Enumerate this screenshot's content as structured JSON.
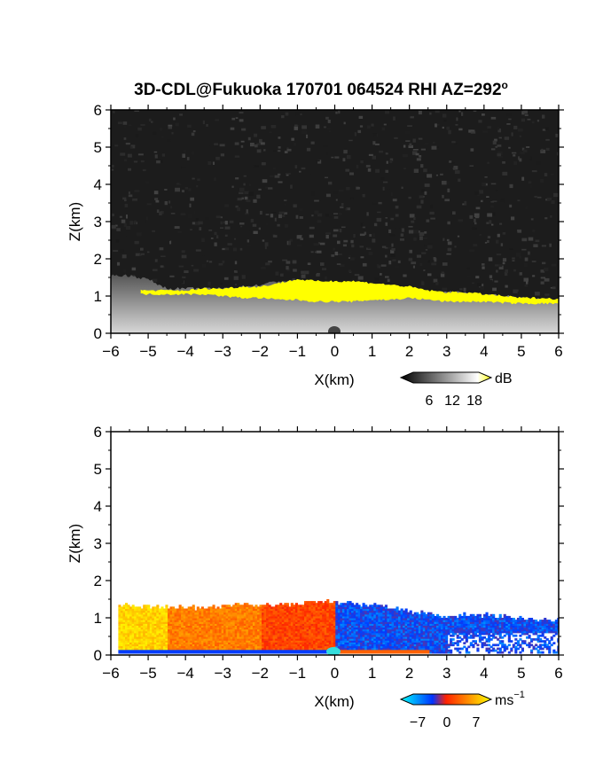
{
  "figure": {
    "title": "3D-CDL@Fukuoka 170701 064524 RHI AZ=292",
    "title_superscript": "o"
  },
  "chart_data": [
    {
      "type": "heatmap",
      "name": "backscatter-intensity",
      "xlabel": "X(km)",
      "ylabel": "Z(km)",
      "xlim": [
        -6,
        6
      ],
      "ylim": [
        0,
        6
      ],
      "xticks": [
        -6,
        -5,
        -4,
        -3,
        -2,
        -1,
        0,
        1,
        2,
        3,
        4,
        5,
        6
      ],
      "yticks": [
        0,
        1,
        2,
        3,
        4,
        5,
        6
      ],
      "colorbar": {
        "unit": "dB",
        "ticks": [
          6,
          12,
          18
        ],
        "colors": [
          "#000000",
          "#ffffff",
          "#ffff00"
        ]
      },
      "background_color": "#1c1c1c",
      "boundary_layer_top_km": {
        "x": [
          -6,
          -5.5,
          -5,
          -4.5,
          -4,
          -3.5,
          -3,
          -2.5,
          -2,
          -1.5,
          -1,
          -0.5,
          0,
          0.5,
          1,
          1.5,
          2,
          2.5,
          3,
          3.5,
          4,
          4.5,
          5,
          5.5,
          6
        ],
        "z": [
          1.55,
          1.55,
          1.45,
          1.2,
          1.2,
          1.2,
          1.2,
          1.25,
          1.3,
          1.4,
          1.4,
          1.35,
          1.35,
          1.35,
          1.3,
          1.25,
          1.2,
          1.05,
          1.1,
          1.1,
          1.05,
          1.0,
          0.95,
          0.9,
          0.9
        ]
      },
      "high_intensity_band_km": {
        "x": [
          -5.2,
          -4.5,
          -4,
          -3.5,
          -3,
          -2.5,
          -2,
          -1.5,
          -1,
          -0.5,
          0,
          0.5,
          1,
          1.5,
          2,
          2.5,
          3,
          3.5,
          4,
          4.5,
          5,
          5.5,
          6
        ],
        "bottom": [
          1.05,
          1.05,
          1.05,
          1.05,
          1.0,
          0.95,
          0.95,
          0.9,
          0.9,
          0.85,
          0.85,
          0.85,
          0.9,
          0.9,
          0.95,
          0.9,
          0.85,
          0.85,
          0.85,
          0.82,
          0.8,
          0.8,
          0.8
        ],
        "top": [
          1.15,
          1.15,
          1.15,
          1.2,
          1.2,
          1.25,
          1.25,
          1.35,
          1.45,
          1.4,
          1.4,
          1.4,
          1.35,
          1.3,
          1.25,
          1.15,
          1.1,
          1.1,
          1.05,
          1.0,
          0.95,
          0.95,
          0.92
        ]
      },
      "band_color": "#ffff00"
    },
    {
      "type": "heatmap",
      "name": "radial-velocity",
      "xlabel": "X(km)",
      "ylabel": "Z(km)",
      "xlim": [
        -6,
        6
      ],
      "ylim": [
        0,
        6
      ],
      "xticks": [
        -6,
        -5,
        -4,
        -3,
        -2,
        -1,
        0,
        1,
        2,
        3,
        4,
        5,
        6
      ],
      "yticks": [
        0,
        1,
        2,
        3,
        4,
        5,
        6
      ],
      "colorbar": {
        "unit": "ms",
        "unit_superscript": "−1",
        "ticks": [
          -7,
          0,
          7
        ],
        "tick_labels": [
          "−7",
          "0",
          "7"
        ],
        "colors": [
          "#00ffff",
          "#0033ff",
          "#ff2200",
          "#ffff00"
        ]
      },
      "echo_top_km": {
        "x": [
          -5.8,
          -5.5,
          -5,
          -4.5,
          -4,
          -3.5,
          -3,
          -2.5,
          -2,
          -1.5,
          -1,
          -0.5,
          0,
          0.5,
          1,
          1.5,
          2,
          2.5,
          3,
          3.5,
          4,
          4.5,
          5,
          5.5,
          6
        ],
        "z": [
          1.3,
          1.3,
          1.3,
          1.25,
          1.25,
          1.25,
          1.3,
          1.35,
          1.3,
          1.35,
          1.35,
          1.4,
          1.4,
          1.35,
          1.3,
          1.25,
          1.15,
          1.1,
          1.0,
          1.05,
          1.05,
          1.0,
          0.95,
          0.9,
          0.9
        ]
      },
      "velocity_regions": [
        {
          "x_from": -6,
          "x_to": -4.5,
          "velocity": 6
        },
        {
          "x_from": -4.5,
          "x_to": -2,
          "velocity": 3
        },
        {
          "x_from": -2,
          "x_to": 0,
          "velocity": 1
        },
        {
          "x_from": 0,
          "x_to": 6,
          "velocity": -4
        }
      ]
    }
  ]
}
